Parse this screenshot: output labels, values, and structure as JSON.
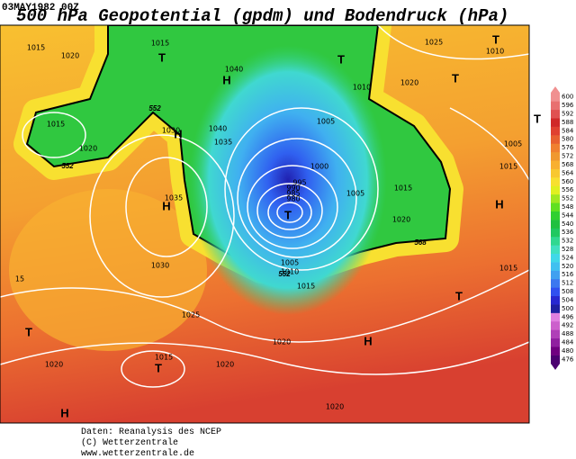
{
  "header": {
    "timestamp": "03MAY1982 00Z",
    "title": "500 hPa Geopotential (gpdm) und Bodendruck (hPa)"
  },
  "map": {
    "pressure_labels": [
      "1015",
      "1015",
      "1020",
      "1040",
      "1010",
      "1020",
      "1025",
      "1010",
      "1015",
      "1030",
      "1040",
      "1035",
      "1020",
      "1005",
      "1005",
      "1000",
      "1015",
      "995",
      "990",
      "985",
      "980",
      "1035",
      "1005",
      "1015",
      "1020",
      "1030",
      "1005",
      "1010",
      "1015",
      "1025",
      "1015",
      "1020",
      "1015",
      "1020",
      "1020",
      "1020",
      "15"
    ],
    "height_labels": [
      "552",
      "552",
      "568",
      "552"
    ],
    "centers": [
      "H",
      "H",
      "H",
      "H",
      "H",
      "H",
      "T",
      "T",
      "T",
      "T",
      "T",
      "T",
      "T",
      "T",
      "T"
    ]
  },
  "legend": {
    "ticks": [
      476,
      480,
      484,
      488,
      492,
      496,
      500,
      504,
      508,
      512,
      516,
      520,
      524,
      528,
      532,
      536,
      540,
      544,
      548,
      552,
      556,
      560,
      564,
      568,
      572,
      576,
      580,
      584,
      588,
      592,
      596,
      600
    ],
    "colors": [
      "#4b0070",
      "#700080",
      "#9020a0",
      "#b040b8",
      "#cc60cc",
      "#e080e0",
      "#2020a0",
      "#2828d0",
      "#3050f0",
      "#3c78f0",
      "#40a0f0",
      "#40c0f0",
      "#40d8e8",
      "#40e0c0",
      "#30d890",
      "#20c860",
      "#20c040",
      "#30d030",
      "#60e020",
      "#a0e820",
      "#e0f020",
      "#f8e030",
      "#f8c830",
      "#f8b030",
      "#f09830",
      "#f08030",
      "#e86030",
      "#e04030",
      "#d02828",
      "#e05050",
      "#e87070",
      "#f09090"
    ]
  },
  "footer": [
    "Daten: Reanalysis des NCEP",
    "(C) Wetterzentrale",
    "www.wetterzentrale.de"
  ]
}
